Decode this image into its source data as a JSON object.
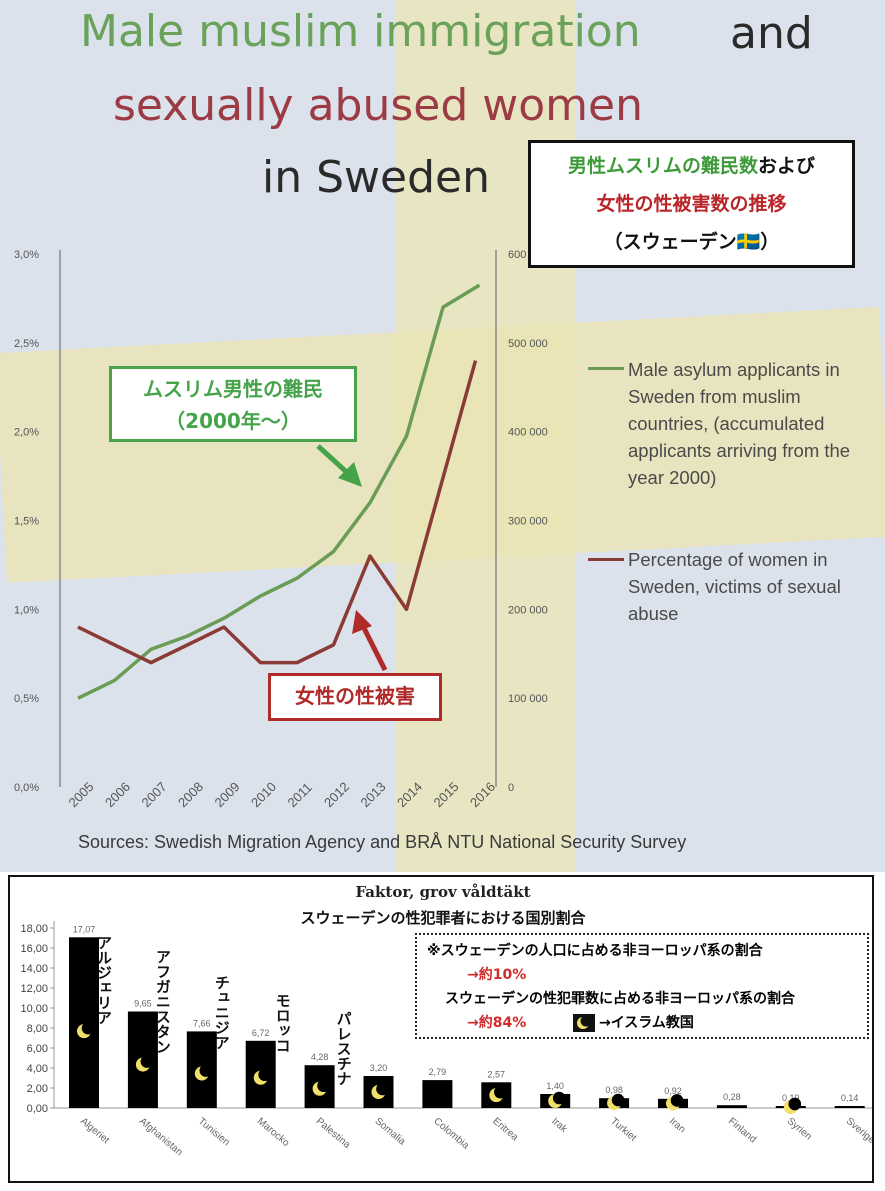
{
  "top_chart": {
    "title_line1": "Male muslim immigration",
    "title_and": "and",
    "title_line2": "sexually abused women",
    "title_line3": "in Sweden",
    "jp_box": {
      "line1_green": "男性ムスリムの難民数",
      "line1_black": "および",
      "line2_red": "女性の性被害数の推移",
      "line3": "（スウェーデン🇸🇪）"
    },
    "legend_green": "Male asylum applicants in Sweden from muslim countries, (accumulated applicants arriving from the year 2000)",
    "legend_red": "Percentage of women in Sweden, victims of sexual abuse",
    "callout_green_line1": "ムスリム男性の難民",
    "callout_green_line2": "（2000年〜）",
    "callout_red": "女性の性被害",
    "sources": "Sources: Swedish Migration Agency and BRÅ NTU National Security Survey",
    "colors": {
      "green": "#6a9c55",
      "red": "#8a3b36",
      "flag_blue": "#c9d6e6",
      "flag_yellow": "#ece6b6"
    }
  },
  "chart_data": [
    {
      "type": "line",
      "x": [
        "2005",
        "2006",
        "2007",
        "2008",
        "2009",
        "2010",
        "2011",
        "2012",
        "2013",
        "2014",
        "2015",
        "2016"
      ],
      "left_axis_ticks": [
        "0,0%",
        "0,5%",
        "1,0%",
        "1,5%",
        "2,0%",
        "2,5%",
        "3,0%"
      ],
      "right_axis_ticks": [
        "0",
        "100 000",
        "200 000",
        "300 000",
        "400 000",
        "500 000",
        "600 000"
      ],
      "ylim_left": [
        0,
        3.0
      ],
      "ylim_right": [
        0,
        600000
      ],
      "series": [
        {
          "name": "Male asylum applicants in Sweden from muslim countries, (accumulated applicants arriving from the year 2000)",
          "axis": "right",
          "color": "#6a9c55",
          "values": [
            100000,
            120000,
            155000,
            170000,
            190000,
            215000,
            235000,
            265000,
            320000,
            395000,
            540000,
            565000
          ]
        },
        {
          "name": "Percentage of women in Sweden, victims of sexual abuse",
          "axis": "left",
          "color": "#8a3b36",
          "values": [
            0.9,
            0.8,
            0.7,
            0.8,
            0.9,
            0.7,
            0.7,
            0.8,
            1.3,
            1.0,
            null,
            null
          ]
        }
      ],
      "red_trend_end": [
        [
          2014,
          1.0
        ],
        [
          2016,
          2.4
        ]
      ]
    },
    {
      "type": "bar",
      "title": "Faktor, grov våldtäkt",
      "subtitle": "スウェーデンの性犯罪者における国別割合",
      "categories": [
        "Algeriet",
        "Afghanistan",
        "Tunisien",
        "Marocko",
        "Palestina",
        "Somalia",
        "Colombia",
        "Eritrea",
        "Irak",
        "Turkiet",
        "Iran",
        "Finland",
        "Syrien",
        "Sverige"
      ],
      "values": [
        17.07,
        9.65,
        7.66,
        6.72,
        4.28,
        3.2,
        2.79,
        2.57,
        1.4,
        0.98,
        0.92,
        0.28,
        0.19,
        0.14
      ],
      "value_labels": [
        "17,07",
        "9,65",
        "7,66",
        "6,72",
        "4,28",
        "3,20",
        "2,79",
        "2,57",
        "1,40",
        "0,98",
        "0,92",
        "0,28",
        "0,19",
        "0,14"
      ],
      "y_ticks": [
        "0,00",
        "2,00",
        "4,00",
        "6,00",
        "8,00",
        "10,00",
        "12,00",
        "14,00",
        "16,00",
        "18,00"
      ],
      "ylim": [
        0,
        18
      ],
      "islamic": [
        true,
        true,
        true,
        true,
        true,
        true,
        false,
        true,
        true,
        true,
        true,
        false,
        true,
        false
      ],
      "jp_labels": [
        "アルジェリア",
        "アフガニスタン",
        "チュニジア",
        "モロッコ",
        "パレスチナ"
      ],
      "bar_color": "#000000"
    }
  ],
  "note": {
    "line1": "※スウェーデンの人口に占める非ヨーロッパ系の割合",
    "line2": "→約10%",
    "line3": "スウェーデンの性犯罪数に占める非ヨーロッパ系の割合",
    "line4": "→約84%",
    "legend": "→イスラム教国"
  }
}
